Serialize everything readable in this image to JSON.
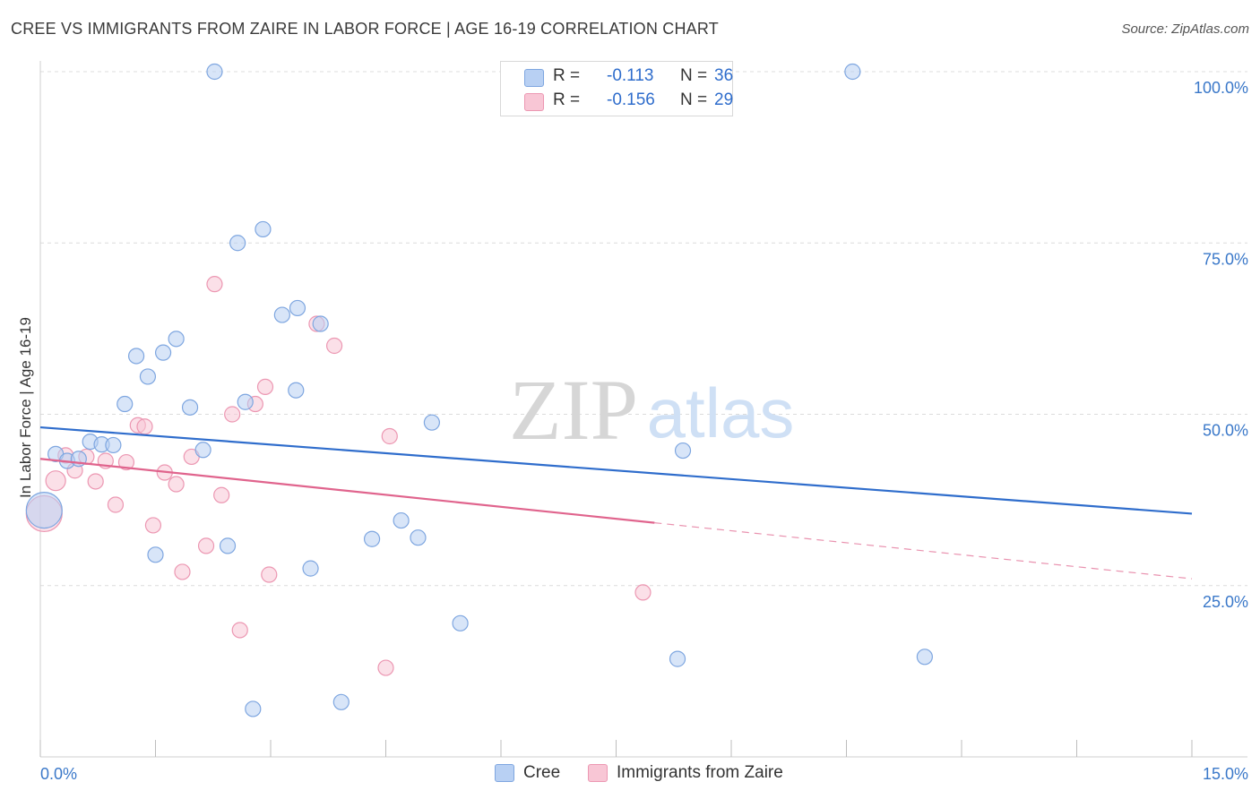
{
  "header": {
    "title": "CREE VS IMMIGRANTS FROM ZAIRE IN LABOR FORCE | AGE 16-19 CORRELATION CHART",
    "source": "Source: ZipAtlas.com"
  },
  "watermark": {
    "zip": "ZIP",
    "atlas": "atlas"
  },
  "legend": {
    "cree": {
      "r_label": "R =",
      "r_value": "-0.113",
      "n_label": "N =",
      "n_value": "36"
    },
    "zaire": {
      "r_label": "R =",
      "r_value": "-0.156",
      "n_label": "N =",
      "n_value": "29"
    }
  },
  "bottom_legend": {
    "cree": "Cree",
    "zaire": "Immigrants from Zaire"
  },
  "colors": {
    "cree_fill": "#b8d0f3",
    "cree_stroke": "#7ea6e0",
    "cree_line": "#2f6dcc",
    "zaire_fill": "#f8c6d5",
    "zaire_stroke": "#ec97b2",
    "zaire_line": "#e0648d",
    "tick_label": "#3a78c9",
    "grid": "#dcdcdc"
  },
  "chart_data": {
    "type": "scatter",
    "title": "CREE VS IMMIGRANTS FROM ZAIRE IN LABOR FORCE | AGE 16-19 CORRELATION CHART",
    "xlabel": "",
    "ylabel": "In Labor Force | Age 16-19",
    "xlim": [
      0,
      15
    ],
    "ylim": [
      0,
      100
    ],
    "x_tick_labels": [
      "0.0%",
      "15.0%"
    ],
    "y_ticks": [
      25,
      50,
      75,
      100
    ],
    "y_tick_labels": [
      "25.0%",
      "50.0%",
      "75.0%",
      "100.0%"
    ],
    "series": [
      {
        "name": "Cree",
        "R": -0.113,
        "N": 36,
        "trend": {
          "x0": 0,
          "y0": 48.1,
          "x1": 15,
          "y1": 35.5,
          "solid_until": 15
        },
        "points": [
          {
            "x": 0.05,
            "y": 36.0,
            "size": "large"
          },
          {
            "x": 0.2,
            "y": 44.2
          },
          {
            "x": 0.35,
            "y": 43.2
          },
          {
            "x": 0.5,
            "y": 43.5
          },
          {
            "x": 0.65,
            "y": 46.0
          },
          {
            "x": 0.8,
            "y": 45.6
          },
          {
            "x": 0.95,
            "y": 45.5
          },
          {
            "x": 1.1,
            "y": 51.5
          },
          {
            "x": 1.25,
            "y": 58.5
          },
          {
            "x": 1.4,
            "y": 55.5
          },
          {
            "x": 1.5,
            "y": 29.5
          },
          {
            "x": 1.6,
            "y": 59.0
          },
          {
            "x": 1.77,
            "y": 61.0
          },
          {
            "x": 1.95,
            "y": 51.0
          },
          {
            "x": 2.12,
            "y": 44.8
          },
          {
            "x": 2.27,
            "y": 100.0
          },
          {
            "x": 2.44,
            "y": 30.8
          },
          {
            "x": 2.57,
            "y": 75.0
          },
          {
            "x": 2.67,
            "y": 51.8
          },
          {
            "x": 2.77,
            "y": 7.0
          },
          {
            "x": 2.9,
            "y": 77.0
          },
          {
            "x": 3.15,
            "y": 64.5
          },
          {
            "x": 3.33,
            "y": 53.5
          },
          {
            "x": 3.35,
            "y": 65.5
          },
          {
            "x": 3.52,
            "y": 27.5
          },
          {
            "x": 3.65,
            "y": 63.2
          },
          {
            "x": 3.92,
            "y": 8.0
          },
          {
            "x": 4.32,
            "y": 31.8
          },
          {
            "x": 4.7,
            "y": 34.5
          },
          {
            "x": 4.92,
            "y": 32.0
          },
          {
            "x": 5.1,
            "y": 48.8
          },
          {
            "x": 5.47,
            "y": 19.5
          },
          {
            "x": 8.3,
            "y": 14.3
          },
          {
            "x": 8.37,
            "y": 44.7
          },
          {
            "x": 10.58,
            "y": 100.0
          },
          {
            "x": 11.52,
            "y": 14.6
          }
        ]
      },
      {
        "name": "Immigrants from Zaire",
        "R": -0.156,
        "N": 29,
        "trend": {
          "x0": 0,
          "y0": 43.5,
          "x1": 15,
          "y1": 26.0,
          "solid_until": 8.0
        },
        "points": [
          {
            "x": 0.05,
            "y": 35.5,
            "size": "large"
          },
          {
            "x": 0.2,
            "y": 40.3,
            "size": "medium"
          },
          {
            "x": 0.33,
            "y": 44.0
          },
          {
            "x": 0.45,
            "y": 41.8
          },
          {
            "x": 0.6,
            "y": 43.8
          },
          {
            "x": 0.72,
            "y": 40.2
          },
          {
            "x": 0.85,
            "y": 43.2
          },
          {
            "x": 0.98,
            "y": 36.8
          },
          {
            "x": 1.12,
            "y": 43.0
          },
          {
            "x": 1.27,
            "y": 48.4
          },
          {
            "x": 1.36,
            "y": 48.2
          },
          {
            "x": 1.47,
            "y": 33.8
          },
          {
            "x": 1.62,
            "y": 41.5
          },
          {
            "x": 1.77,
            "y": 39.8
          },
          {
            "x": 1.85,
            "y": 27.0
          },
          {
            "x": 1.97,
            "y": 43.8
          },
          {
            "x": 2.16,
            "y": 30.8
          },
          {
            "x": 2.27,
            "y": 69.0
          },
          {
            "x": 2.36,
            "y": 38.2
          },
          {
            "x": 2.5,
            "y": 50.0
          },
          {
            "x": 2.6,
            "y": 18.5
          },
          {
            "x": 2.8,
            "y": 51.5
          },
          {
            "x": 2.93,
            "y": 54.0
          },
          {
            "x": 2.98,
            "y": 26.6
          },
          {
            "x": 3.6,
            "y": 63.2
          },
          {
            "x": 3.83,
            "y": 60.0
          },
          {
            "x": 4.5,
            "y": 13.0
          },
          {
            "x": 4.55,
            "y": 46.8
          },
          {
            "x": 7.85,
            "y": 24.0
          }
        ]
      }
    ]
  }
}
